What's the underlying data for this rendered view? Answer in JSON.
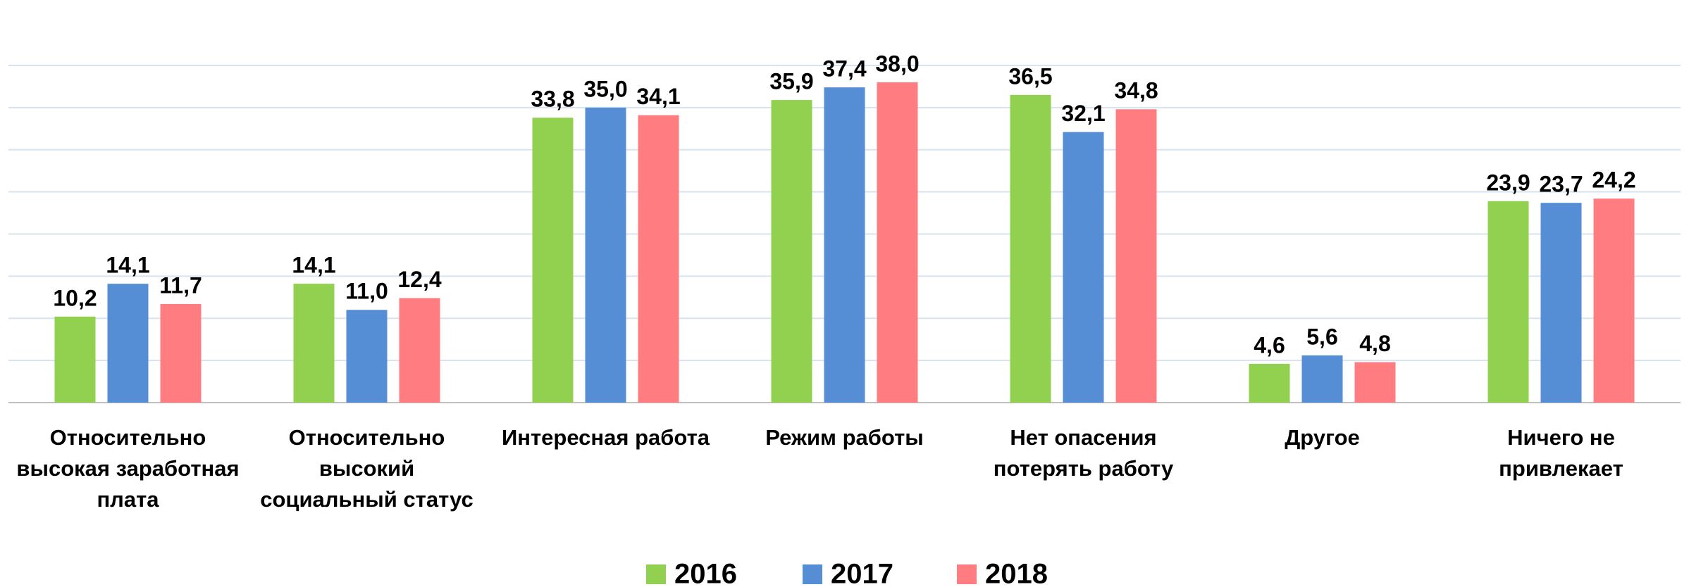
{
  "chart_data": {
    "type": "bar",
    "categories": [
      "Относительно\nвысокая заработная\nплата",
      "Относительно\nвысокий\nсоциальный статус",
      "Интересная работа",
      "Режим работы",
      "Нет опасения\nпотерять работу",
      "Другое",
      "Ничего не\nпривлекает"
    ],
    "series": [
      {
        "name": "2016",
        "color": "#92d050",
        "values": [
          10.2,
          14.1,
          33.8,
          35.9,
          36.5,
          4.6,
          23.9
        ],
        "value_labels": [
          "10,2",
          "14,1",
          "33,8",
          "35,9",
          "36,5",
          "4,6",
          "23,9"
        ]
      },
      {
        "name": "2017",
        "color": "#558ed5",
        "values": [
          14.1,
          11.0,
          35.0,
          37.4,
          32.1,
          5.6,
          23.7
        ],
        "value_labels": [
          "14,1",
          "11,0",
          "35,0",
          "37,4",
          "32,1",
          "5,6",
          "23,7"
        ]
      },
      {
        "name": "2018",
        "color": "#ff7c80",
        "values": [
          11.7,
          12.4,
          34.1,
          38.0,
          34.8,
          4.8,
          24.2
        ],
        "value_labels": [
          "11,7",
          "12,4",
          "34,1",
          "38,0",
          "34,8",
          "4,8",
          "24,2"
        ]
      }
    ],
    "ylim": [
      0,
      40
    ],
    "yticks": [
      0,
      5,
      10,
      15,
      20,
      25,
      30,
      35,
      40
    ],
    "grid": true,
    "legend": "bottom"
  }
}
